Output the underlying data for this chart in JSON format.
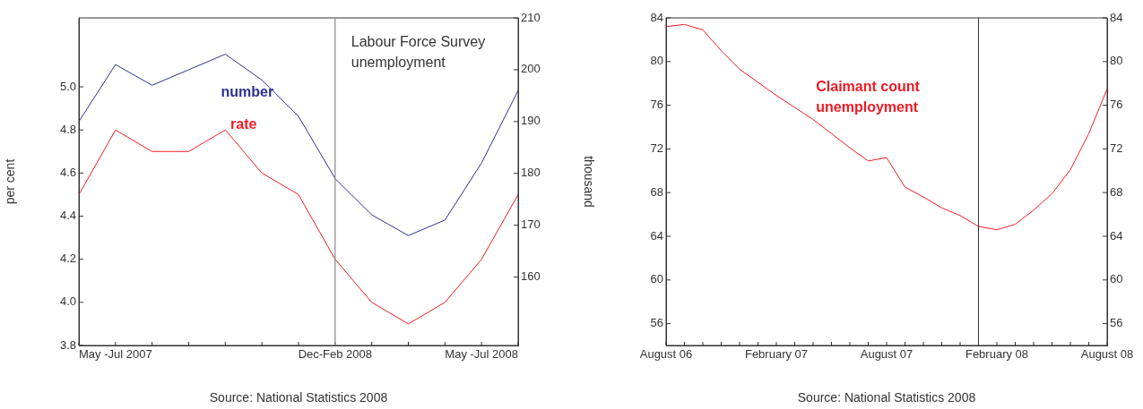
{
  "chart_data": [
    {
      "type": "line",
      "categories": [
        null,
        "May -Jul 2007",
        null,
        null,
        null,
        null,
        null,
        "Dec-Feb 2008",
        null,
        null,
        null,
        "May -Jul 2008",
        null
      ],
      "series": [
        {
          "name": "number",
          "color": "#2e3192",
          "axis": "y2",
          "values": [
            190,
            201,
            197,
            200,
            203,
            198,
            191,
            179,
            172,
            168,
            171,
            182,
            196
          ]
        },
        {
          "name": "rate",
          "color": "#ed1c24",
          "values": [
            4.5,
            4.8,
            4.7,
            4.7,
            4.8,
            4.6,
            4.5,
            4.2,
            4.0,
            3.9,
            4.0,
            4.2,
            4.5
          ]
        }
      ],
      "ylabel": "per cent",
      "y2label": "thousand",
      "ylim": [
        3.8,
        5.32
      ],
      "yticks": [
        3.8,
        {
          "value": 4,
          "label": "4.0"
        },
        4.2,
        4.4,
        4.6,
        4.8,
        {
          "value": 5,
          "label": "5.0"
        }
      ],
      "y2lim": [
        146.8,
        210
      ],
      "y2ticks": [
        160,
        170,
        180,
        190,
        200,
        210
      ],
      "ref_lines": [
        {
          "axis": "x",
          "value": "Dec-Feb 2008",
          "color": "#888888"
        }
      ],
      "annotations": [
        "Labour Force Survey\nunemployment",
        "Source: National Statistics 2008"
      ],
      "grid": false,
      "legend": false,
      "marker": "none",
      "line_style": "solid"
    },
    {
      "type": "line",
      "categories": [
        "August 06",
        null,
        null,
        null,
        null,
        null,
        "February 07",
        null,
        null,
        null,
        null,
        null,
        "August 07",
        null,
        null,
        null,
        null,
        null,
        "February 08",
        null,
        null,
        null,
        null,
        null,
        "August 08"
      ],
      "series": [
        {
          "color": "#ed1c24",
          "values": [
            83.2,
            83.4,
            82.9,
            81.0,
            79.3,
            78.1,
            76.9,
            75.8,
            74.7,
            73.4,
            72.1,
            70.9,
            71.2,
            68.5,
            67.6,
            66.6,
            65.9,
            64.9,
            64.6,
            65.1,
            66.4,
            67.9,
            70.1,
            73.4,
            77.5
          ]
        }
      ],
      "ylim": [
        54,
        84
      ],
      "yticks": [
        56,
        60,
        64,
        68,
        72,
        76,
        80,
        84
      ],
      "y2lim": [
        54,
        84
      ],
      "y2ticks": [
        56,
        60,
        64,
        68,
        72,
        76,
        80,
        84
      ],
      "annotations": [
        "Claimant count\nunemployment",
        "Source: National Statistics 2008"
      ],
      "grid": false,
      "legend": false,
      "marker": "none",
      "line_style": "solid"
    }
  ]
}
